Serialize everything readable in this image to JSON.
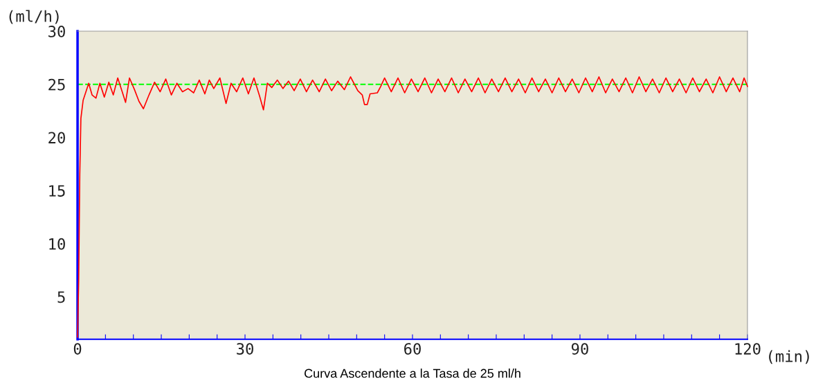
{
  "chart_data": {
    "type": "line",
    "xlabel": "(min)",
    "ylabel": "(ml/h)",
    "annotations": [
      "Curva Ascendente a la Tasa de 25 ml/h"
    ],
    "xlim": [
      0,
      120
    ],
    "ylim": [
      1,
      30
    ],
    "xticks": [
      0,
      {
        "value": 5,
        "label": null
      },
      {
        "value": 10,
        "label": null
      },
      {
        "value": 15,
        "label": null
      },
      {
        "value": 20,
        "label": null
      },
      {
        "value": 25,
        "label": null
      },
      30,
      {
        "value": 35,
        "label": null
      },
      {
        "value": 40,
        "label": null
      },
      {
        "value": 45,
        "label": null
      },
      {
        "value": 50,
        "label": null
      },
      {
        "value": 55,
        "label": null
      },
      60,
      {
        "value": 65,
        "label": null
      },
      {
        "value": 70,
        "label": null
      },
      {
        "value": 75,
        "label": null
      },
      {
        "value": 80,
        "label": null
      },
      {
        "value": 85,
        "label": null
      },
      90,
      {
        "value": 95,
        "label": null
      },
      {
        "value": 100,
        "label": null
      },
      {
        "value": 105,
        "label": null
      },
      {
        "value": 110,
        "label": null
      },
      {
        "value": 115,
        "label": null
      },
      120
    ],
    "yticks": [
      5,
      10,
      15,
      20,
      25,
      30
    ],
    "grid": false,
    "legend": false,
    "marker": "none",
    "line_style": "solid",
    "ref_lines": [
      {
        "axis": "y",
        "value": 25,
        "label": null,
        "color": "#00ff00",
        "line_style": "dashed"
      }
    ],
    "series": [
      {
        "color": "#ff0000",
        "x": [
          0,
          0.2,
          0.4,
          0.6,
          1.0,
          1.5,
          2.0,
          2.6,
          3.3,
          4.0,
          4.8,
          5.6,
          6.4,
          7.2,
          8.0,
          8.6,
          9.3,
          10.2,
          11.0,
          11.8,
          12.8,
          13.8,
          14.8,
          15.8,
          16.8,
          17.8,
          18.8,
          19.8,
          20.8,
          21.8,
          22.8,
          23.6,
          24.4,
          25.5,
          26.6,
          27.5,
          28.5,
          29.6,
          30.6,
          31.6,
          32.6,
          33.3,
          34.0,
          34.8,
          35.8,
          36.8,
          37.8,
          38.8,
          39.9,
          41.0,
          42.1,
          43.3,
          44.4,
          45.5,
          46.6,
          47.8,
          48.9,
          50.2,
          51.0,
          51.4,
          51.9,
          52.4,
          53.7,
          54.3,
          55.0,
          56.2,
          57.4,
          58.6,
          59.8,
          61.0,
          62.2,
          63.4,
          64.6,
          65.8,
          67.0,
          68.2,
          69.4,
          70.6,
          71.8,
          73.0,
          74.2,
          75.4,
          76.6,
          77.8,
          79.0,
          80.2,
          81.4,
          82.6,
          83.8,
          85.0,
          86.2,
          87.4,
          88.6,
          89.8,
          91.0,
          92.2,
          93.4,
          94.6,
          95.8,
          97.0,
          98.2,
          99.4,
          100.6,
          101.8,
          103.0,
          104.2,
          105.4,
          106.6,
          107.8,
          109.0,
          110.2,
          111.4,
          112.6,
          113.8,
          115.0,
          116.2,
          117.4,
          118.6,
          119.4,
          120
        ],
        "values": [
          1.2,
          6.5,
          16.5,
          21.8,
          23.5,
          24.3,
          25.1,
          24.0,
          23.7,
          25.1,
          23.8,
          25.2,
          24.0,
          25.6,
          24.3,
          23.3,
          25.6,
          24.5,
          23.4,
          22.7,
          24.0,
          25.2,
          24.3,
          25.5,
          24.0,
          25.1,
          24.3,
          24.6,
          24.2,
          25.4,
          24.1,
          25.4,
          24.6,
          25.6,
          23.2,
          25.1,
          24.3,
          25.6,
          24.1,
          25.6,
          23.9,
          22.6,
          25.1,
          24.7,
          25.4,
          24.6,
          25.3,
          24.4,
          25.5,
          24.3,
          25.4,
          24.3,
          25.5,
          24.4,
          25.3,
          24.5,
          25.7,
          24.4,
          24.0,
          23.1,
          23.1,
          24.1,
          24.2,
          24.8,
          25.6,
          24.3,
          25.6,
          24.2,
          25.5,
          24.3,
          25.6,
          24.2,
          25.5,
          24.3,
          25.6,
          24.2,
          25.5,
          24.3,
          25.6,
          24.2,
          25.5,
          24.3,
          25.6,
          24.3,
          25.5,
          24.2,
          25.6,
          24.3,
          25.5,
          24.2,
          25.6,
          24.3,
          25.5,
          24.2,
          25.6,
          24.3,
          25.7,
          24.2,
          25.5,
          24.3,
          25.6,
          24.2,
          25.7,
          24.3,
          25.5,
          24.2,
          25.6,
          24.3,
          25.5,
          24.2,
          25.6,
          24.3,
          25.5,
          24.2,
          25.7,
          24.3,
          25.6,
          24.3,
          25.6,
          24.8
        ]
      }
    ]
  }
}
